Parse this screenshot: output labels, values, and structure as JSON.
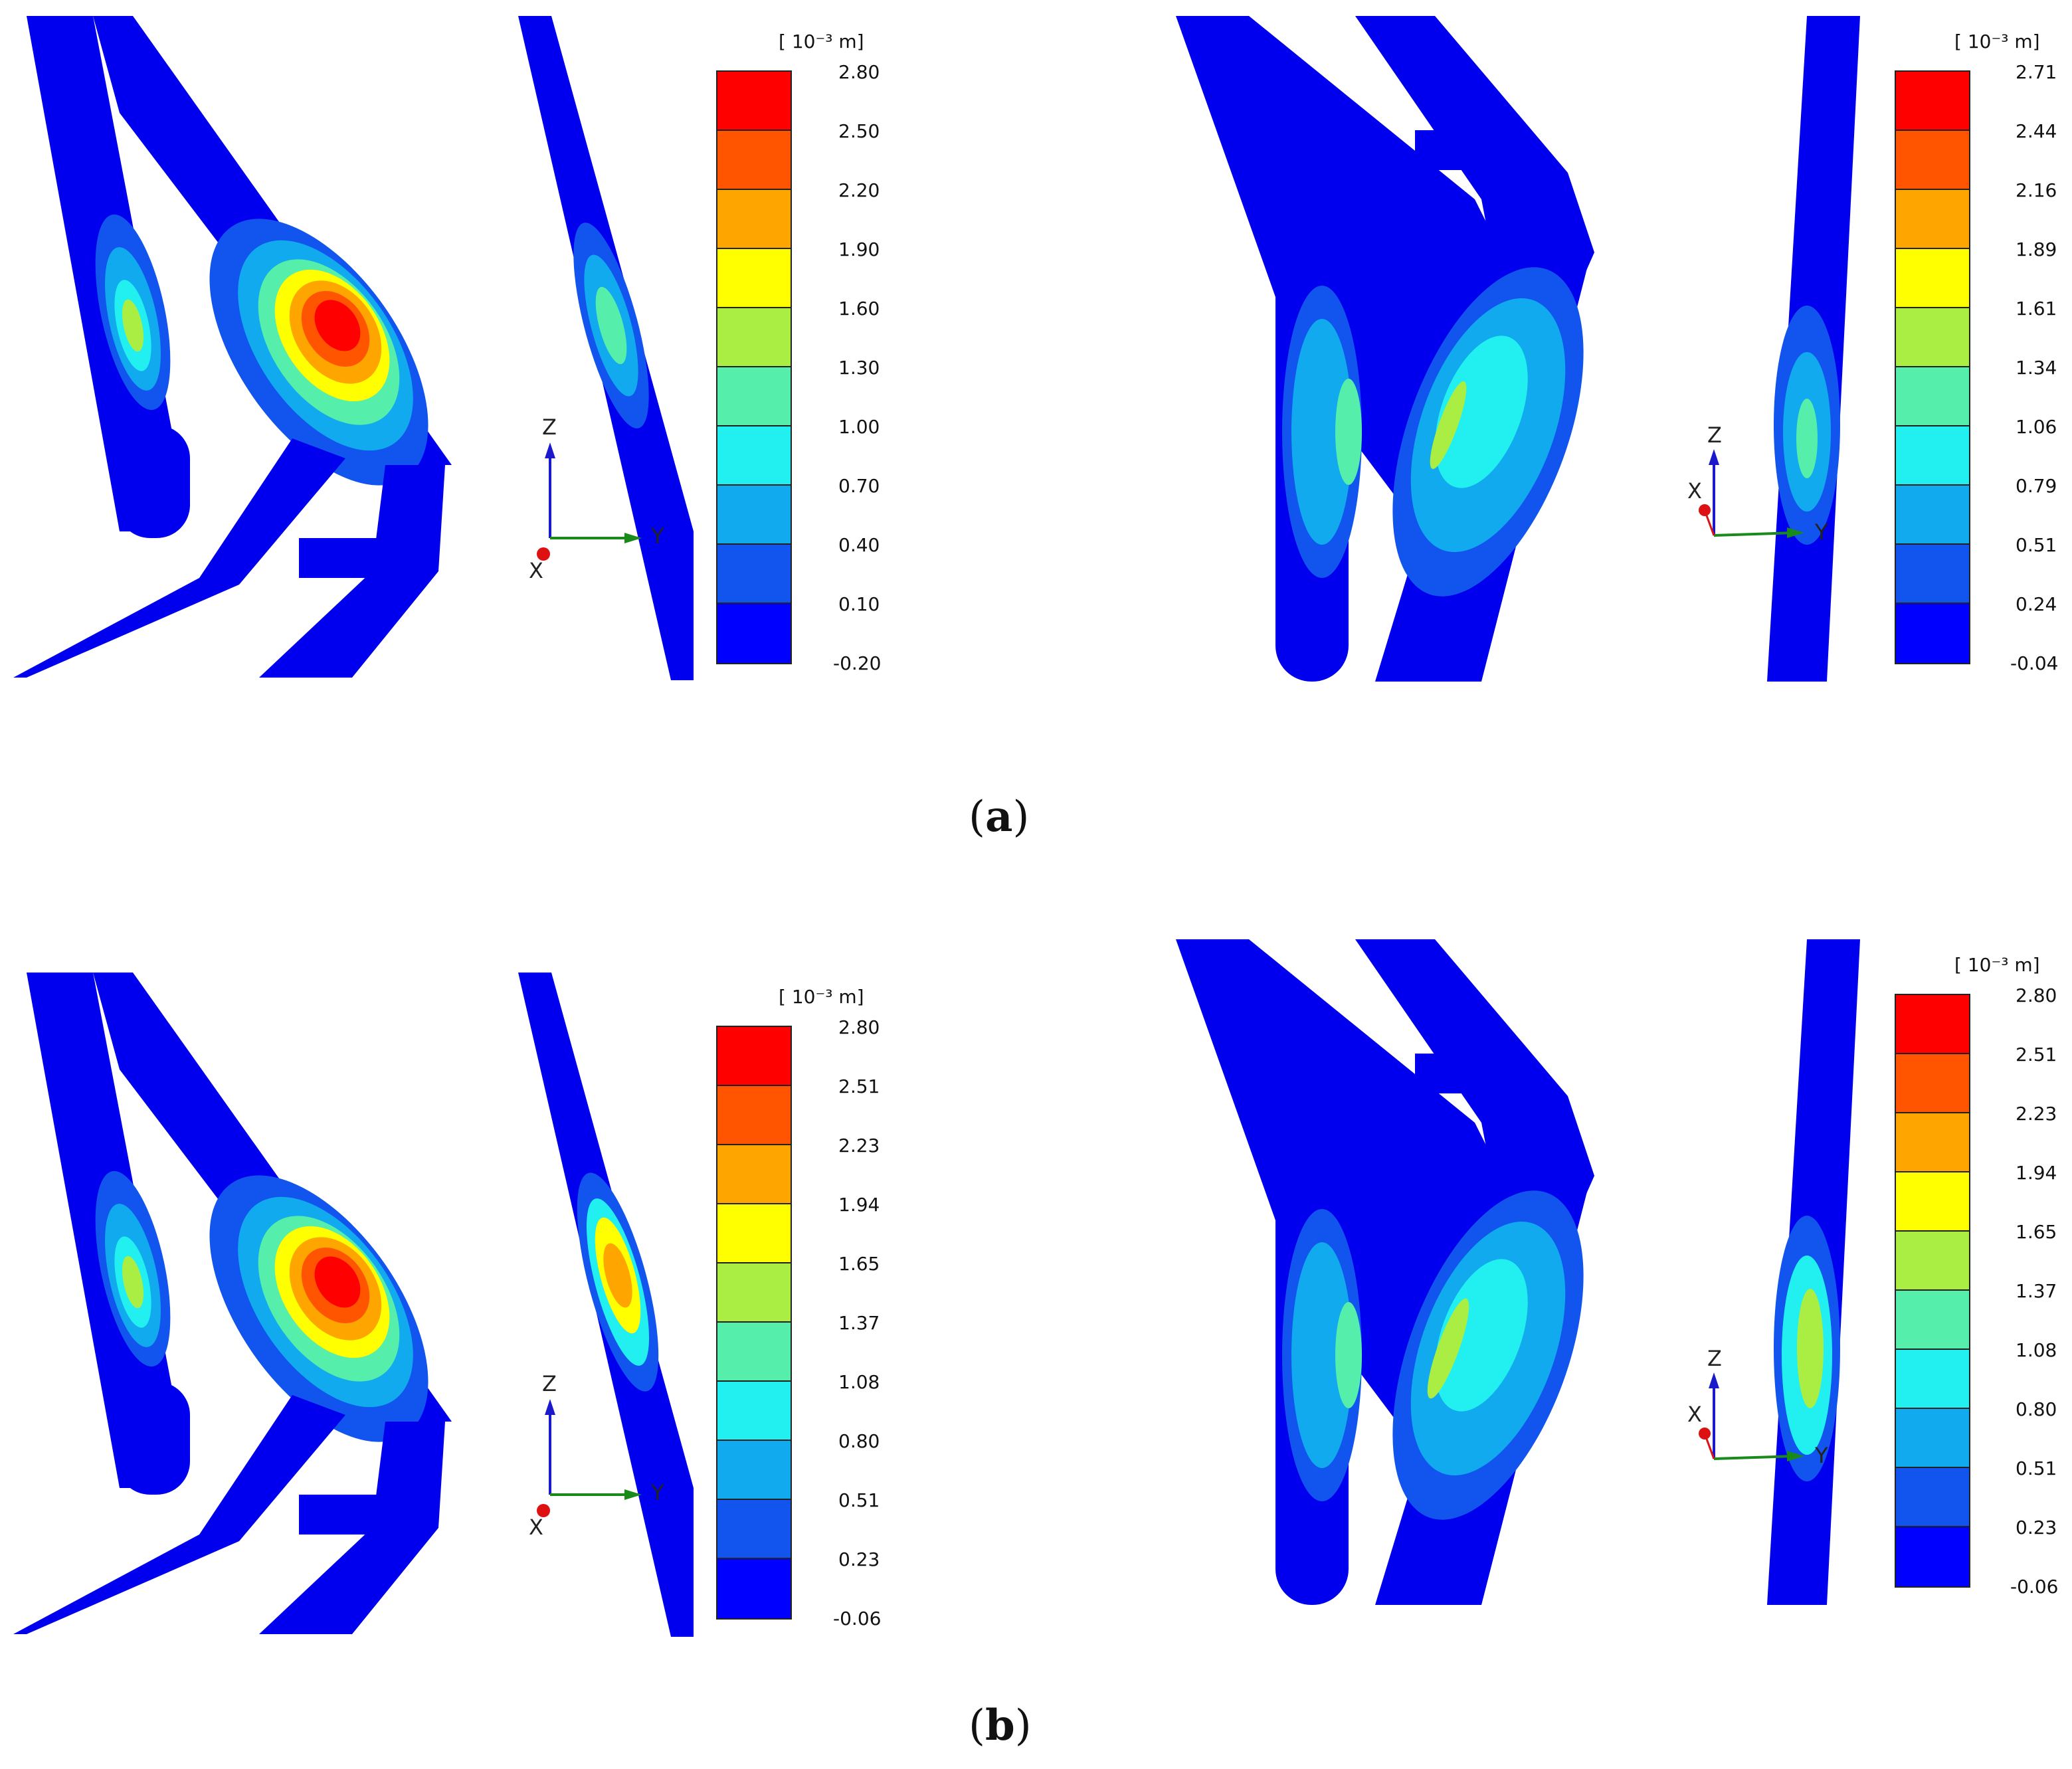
{
  "panels": [
    {
      "id": "a-left",
      "unit": "[ 10⁻³ m]",
      "ticks": [
        "2.80",
        "2.50",
        "2.20",
        "1.90",
        "1.60",
        "1.30",
        "1.00",
        "0.70",
        "0.40",
        "0.10",
        "-0.20"
      ],
      "axis": {
        "z": "Z",
        "x": "X",
        "y": "Y"
      }
    },
    {
      "id": "a-right",
      "unit": "[ 10⁻³ m]",
      "ticks": [
        "2.71",
        "2.44",
        "2.16",
        "1.89",
        "1.61",
        "1.34",
        "1.06",
        "0.79",
        "0.51",
        "0.24",
        "-0.04"
      ],
      "axis": {
        "z": "Z",
        "x": "X",
        "y": "Y"
      }
    },
    {
      "id": "b-left",
      "unit": "[ 10⁻³ m]",
      "ticks": [
        "2.80",
        "2.51",
        "2.23",
        "1.94",
        "1.65",
        "1.37",
        "1.08",
        "0.80",
        "0.51",
        "0.23",
        "-0.06"
      ],
      "axis": {
        "z": "Z",
        "x": "X",
        "y": "Y"
      }
    },
    {
      "id": "b-right",
      "unit": "[ 10⁻³ m]",
      "ticks": [
        "2.80",
        "2.51",
        "2.23",
        "1.94",
        "1.65",
        "1.37",
        "1.08",
        "0.80",
        "0.51",
        "0.23",
        "-0.06"
      ],
      "axis": {
        "z": "Z",
        "x": "X",
        "y": "Y"
      }
    }
  ],
  "captions": {
    "a": "a",
    "b": "b"
  },
  "legend_colors": [
    "#ff0000",
    "#ff5500",
    "#ffa500",
    "#ffff00",
    "#aaee44",
    "#55eeaa",
    "#22f0f0",
    "#11aaee",
    "#1155ee",
    "#0000ff"
  ],
  "axis_colors": {
    "z": "#1a1acc",
    "y": "#1a8a1a",
    "x": "#dd1111"
  }
}
